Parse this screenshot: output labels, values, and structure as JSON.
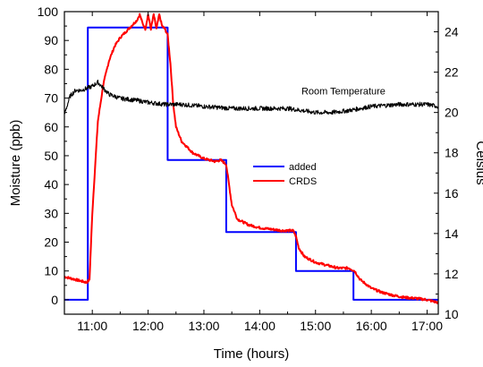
{
  "chart_data": {
    "type": "line",
    "xlabel": "Time (hours)",
    "ylabel_left": "Moisture (ppb)",
    "ylabel_right": "Celsius",
    "xlim": [
      10.5,
      17.2
    ],
    "ylim_left": [
      -5,
      100
    ],
    "ylim_right": [
      10,
      25
    ],
    "x_ticks": [
      {
        "value": 11,
        "label": "11:00"
      },
      {
        "value": 12,
        "label": "12:00"
      },
      {
        "value": 13,
        "label": "13:00"
      },
      {
        "value": 14,
        "label": "14:00"
      },
      {
        "value": 15,
        "label": "15:00"
      },
      {
        "value": 16,
        "label": "16:00"
      },
      {
        "value": 17,
        "label": "17:00"
      }
    ],
    "y_ticks_left": [
      0,
      10,
      20,
      30,
      40,
      50,
      60,
      70,
      80,
      90,
      100
    ],
    "y_ticks_right": [
      10,
      12,
      14,
      16,
      18,
      20,
      22,
      24
    ],
    "grid": false,
    "legend_position": "center-right",
    "annotations": [
      {
        "text": "Room Temperature",
        "x": 15.5,
        "y_right": 20.9
      }
    ],
    "series": [
      {
        "name": "added",
        "color": "#0000ff",
        "axis": "left",
        "step": true,
        "x": [
          10.5,
          10.92,
          10.92,
          12.35,
          12.35,
          13.4,
          13.4,
          14.65,
          14.65,
          15.68,
          15.68,
          17.2
        ],
        "y": [
          0,
          0,
          94.5,
          94.5,
          48.5,
          48.5,
          23.5,
          23.5,
          10,
          10,
          0,
          0
        ]
      },
      {
        "name": "CRDS",
        "color": "#ff0000",
        "axis": "left",
        "x": [
          10.5,
          10.7,
          10.9,
          10.95,
          11.0,
          11.1,
          11.2,
          11.3,
          11.4,
          11.5,
          11.6,
          11.7,
          11.8,
          11.85,
          11.9,
          11.95,
          12.0,
          12.05,
          12.1,
          12.15,
          12.2,
          12.25,
          12.3,
          12.35,
          12.4,
          12.45,
          12.5,
          12.6,
          12.7,
          12.8,
          12.9,
          13.0,
          13.1,
          13.2,
          13.3,
          13.4,
          13.45,
          13.5,
          13.6,
          13.8,
          14.0,
          14.2,
          14.4,
          14.6,
          14.65,
          14.7,
          14.8,
          15.0,
          15.2,
          15.4,
          15.6,
          15.7,
          15.8,
          16.0,
          16.2,
          16.4,
          16.6,
          16.8,
          17.0,
          17.2
        ],
        "y": [
          8,
          7,
          6,
          7,
          30,
          62,
          75,
          83,
          88,
          91,
          93,
          95,
          97,
          99,
          96,
          94,
          99,
          94,
          99,
          94,
          99,
          95,
          94,
          92,
          82,
          68,
          60,
          55,
          53,
          51,
          50,
          49,
          48.5,
          48,
          48.5,
          47,
          40,
          33,
          28,
          26,
          25,
          24.5,
          24,
          24,
          22,
          18,
          15,
          13,
          12,
          11,
          11,
          10,
          7,
          4,
          2.5,
          1.5,
          0.8,
          0.5,
          0,
          -1
        ]
      },
      {
        "name": "Room Temperature",
        "color": "#000000",
        "axis": "right",
        "x": [
          10.5,
          10.6,
          10.7,
          10.8,
          10.9,
          11.0,
          11.1,
          11.2,
          11.3,
          11.5,
          11.8,
          12.0,
          12.3,
          12.6,
          13.0,
          13.5,
          14.0,
          14.5,
          15.0,
          15.3,
          15.6,
          16.0,
          16.5,
          17.0,
          17.2
        ],
        "y": [
          19.9,
          20.8,
          21.1,
          21.1,
          21.2,
          21.3,
          21.5,
          21.2,
          20.9,
          20.7,
          20.6,
          20.5,
          20.4,
          20.4,
          20.3,
          20.2,
          20.2,
          20.2,
          20.0,
          20.0,
          20.1,
          20.3,
          20.4,
          20.4,
          20.3
        ]
      }
    ]
  }
}
